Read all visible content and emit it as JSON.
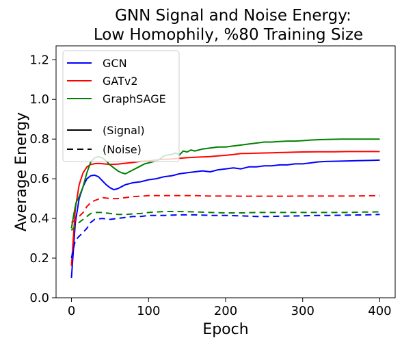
{
  "chart_data": {
    "type": "line",
    "title": [
      "GNN Signal and Noise Energy:",
      "Low Homophily, %80 Training Size"
    ],
    "xlabel": "Epoch",
    "ylabel": "Average Energy",
    "xlim": [
      -20,
      420
    ],
    "ylim": [
      0.0,
      1.27
    ],
    "xticks": [
      0,
      100,
      200,
      300,
      400
    ],
    "yticks": [
      0.0,
      0.2,
      0.4,
      0.6,
      0.8,
      1.0,
      1.2
    ],
    "xtick_labels": [
      "0",
      "100",
      "200",
      "300",
      "400"
    ],
    "ytick_labels": [
      "0.0",
      "0.2",
      "0.4",
      "0.6",
      "0.8",
      "1.0",
      "1.2"
    ],
    "legend_position": "upper-left",
    "legend": [
      {
        "label": "GCN",
        "color": "#0000ff",
        "style": "solid"
      },
      {
        "label": "GATv2",
        "color": "#ff0000",
        "style": "solid"
      },
      {
        "label": "GraphSAGE",
        "color": "#008000",
        "style": "solid"
      },
      {
        "label": "",
        "color": "#000000",
        "style": "none"
      },
      {
        "label": " (Signal)",
        "color": "#000000",
        "style": "solid"
      },
      {
        "label": "(Noise)",
        "color": "#000000",
        "style": "dashed"
      }
    ],
    "series": [
      {
        "model": "GCN",
        "kind": "signal",
        "color": "#0000ff",
        "style": "solid",
        "x": [
          0,
          5,
          10,
          15,
          20,
          25,
          30,
          35,
          40,
          45,
          50,
          55,
          60,
          70,
          80,
          90,
          100,
          110,
          120,
          130,
          140,
          150,
          160,
          170,
          180,
          190,
          200,
          210,
          220,
          230,
          240,
          250,
          260,
          270,
          280,
          290,
          300,
          310,
          320,
          330,
          340,
          350,
          360,
          370,
          380,
          390,
          400
        ],
        "y": [
          0.1,
          0.38,
          0.5,
          0.56,
          0.6,
          0.615,
          0.618,
          0.61,
          0.59,
          0.57,
          0.555,
          0.545,
          0.55,
          0.57,
          0.58,
          0.585,
          0.595,
          0.6,
          0.61,
          0.615,
          0.625,
          0.63,
          0.635,
          0.64,
          0.635,
          0.645,
          0.65,
          0.655,
          0.65,
          0.66,
          0.66,
          0.665,
          0.665,
          0.67,
          0.67,
          0.675,
          0.675,
          0.68,
          0.685,
          0.687,
          0.688,
          0.689,
          0.69,
          0.691,
          0.692,
          0.693,
          0.694
        ]
      },
      {
        "model": "GATv2",
        "kind": "signal",
        "color": "#ff0000",
        "style": "solid",
        "x": [
          0,
          5,
          10,
          15,
          20,
          25,
          30,
          35,
          40,
          45,
          50,
          60,
          70,
          80,
          90,
          100,
          110,
          120,
          130,
          140,
          150,
          160,
          170,
          180,
          190,
          200,
          210,
          220,
          230,
          240,
          250,
          260,
          270,
          280,
          290,
          300,
          320,
          340,
          360,
          380,
          400
        ],
        "y": [
          0.16,
          0.45,
          0.57,
          0.63,
          0.66,
          0.672,
          0.676,
          0.677,
          0.676,
          0.674,
          0.672,
          0.674,
          0.678,
          0.682,
          0.688,
          0.69,
          0.695,
          0.698,
          0.7,
          0.703,
          0.706,
          0.708,
          0.71,
          0.712,
          0.715,
          0.718,
          0.722,
          0.727,
          0.728,
          0.729,
          0.73,
          0.731,
          0.732,
          0.733,
          0.734,
          0.735,
          0.736,
          0.736,
          0.737,
          0.737,
          0.737
        ]
      },
      {
        "model": "GraphSAGE",
        "kind": "signal",
        "color": "#008000",
        "style": "solid",
        "x": [
          0,
          3,
          6,
          10,
          15,
          20,
          25,
          30,
          35,
          40,
          45,
          50,
          55,
          60,
          65,
          70,
          75,
          80,
          85,
          90,
          95,
          100,
          105,
          110,
          115,
          120,
          125,
          130,
          135,
          140,
          145,
          150,
          155,
          160,
          170,
          180,
          190,
          200,
          210,
          220,
          230,
          240,
          250,
          260,
          270,
          280,
          290,
          300,
          310,
          320,
          330,
          340,
          350,
          360,
          370,
          380,
          390,
          400
        ],
        "y": [
          0.35,
          0.42,
          0.48,
          0.51,
          0.56,
          0.63,
          0.685,
          0.705,
          0.712,
          0.705,
          0.69,
          0.67,
          0.655,
          0.64,
          0.63,
          0.625,
          0.635,
          0.645,
          0.655,
          0.665,
          0.675,
          0.68,
          0.685,
          0.69,
          0.7,
          0.715,
          0.72,
          0.722,
          0.73,
          0.72,
          0.74,
          0.735,
          0.745,
          0.74,
          0.75,
          0.755,
          0.76,
          0.76,
          0.765,
          0.77,
          0.775,
          0.78,
          0.785,
          0.785,
          0.788,
          0.79,
          0.79,
          0.792,
          0.795,
          0.797,
          0.798,
          0.799,
          0.8,
          0.8,
          0.8,
          0.8,
          0.8,
          0.8
        ]
      },
      {
        "model": "GCN",
        "kind": "noise",
        "color": "#0000ff",
        "style": "dashed",
        "x": [
          0,
          5,
          10,
          15,
          20,
          25,
          30,
          40,
          50,
          60,
          70,
          80,
          90,
          100,
          120,
          140,
          160,
          180,
          200,
          220,
          240,
          260,
          280,
          300,
          320,
          340,
          360,
          380,
          400
        ],
        "y": [
          0.2,
          0.29,
          0.31,
          0.33,
          0.35,
          0.38,
          0.395,
          0.4,
          0.395,
          0.4,
          0.405,
          0.41,
          0.41,
          0.415,
          0.415,
          0.418,
          0.418,
          0.415,
          0.415,
          0.413,
          0.41,
          0.41,
          0.412,
          0.413,
          0.415,
          0.415,
          0.417,
          0.418,
          0.42
        ]
      },
      {
        "model": "GATv2",
        "kind": "noise",
        "color": "#ff0000",
        "style": "dashed",
        "x": [
          0,
          5,
          10,
          15,
          20,
          25,
          30,
          40,
          50,
          60,
          70,
          80,
          90,
          100,
          120,
          140,
          160,
          180,
          200,
          220,
          240,
          260,
          280,
          300,
          320,
          340,
          360,
          380,
          400
        ],
        "y": [
          0.38,
          0.39,
          0.41,
          0.43,
          0.46,
          0.48,
          0.49,
          0.505,
          0.5,
          0.5,
          0.505,
          0.51,
          0.512,
          0.515,
          0.515,
          0.515,
          0.515,
          0.513,
          0.513,
          0.512,
          0.512,
          0.512,
          0.512,
          0.513,
          0.513,
          0.513,
          0.513,
          0.514,
          0.515
        ]
      },
      {
        "model": "GraphSAGE",
        "kind": "noise",
        "color": "#008000",
        "style": "dashed",
        "x": [
          0,
          5,
          10,
          15,
          20,
          25,
          30,
          40,
          50,
          60,
          70,
          80,
          90,
          100,
          120,
          140,
          160,
          180,
          200,
          220,
          240,
          260,
          280,
          300,
          320,
          340,
          360,
          380,
          400
        ],
        "y": [
          0.34,
          0.36,
          0.38,
          0.395,
          0.41,
          0.425,
          0.43,
          0.43,
          0.425,
          0.42,
          0.42,
          0.423,
          0.425,
          0.43,
          0.435,
          0.435,
          0.433,
          0.43,
          0.428,
          0.428,
          0.43,
          0.43,
          0.43,
          0.43,
          0.43,
          0.43,
          0.43,
          0.432,
          0.433
        ]
      }
    ]
  }
}
